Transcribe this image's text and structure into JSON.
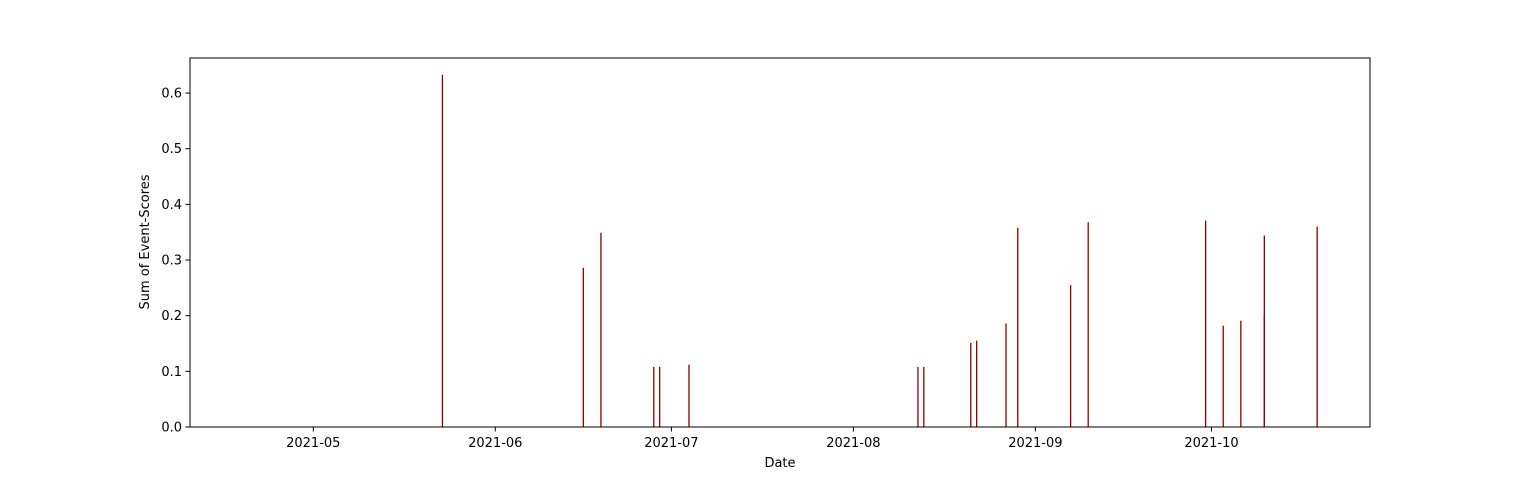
{
  "chart_data": {
    "type": "bar",
    "title": "",
    "xlabel": "Date",
    "ylabel": "Sum of Event-Scores",
    "x_axis_kind": "date",
    "xlim": [
      "2021-04-10",
      "2021-10-28"
    ],
    "ylim": [
      0,
      0.663
    ],
    "xticks": [
      "2021-05-01",
      "2021-06-01",
      "2021-07-01",
      "2021-08-01",
      "2021-09-01",
      "2021-10-01"
    ],
    "xtick_labels": [
      "2021-05",
      "2021-06",
      "2021-07",
      "2021-08",
      "2021-09",
      "2021-10"
    ],
    "yticks": [
      0.0,
      0.1,
      0.2,
      0.3,
      0.4,
      0.5,
      0.6
    ],
    "ytick_labels": [
      "0.0",
      "0.1",
      "0.2",
      "0.3",
      "0.4",
      "0.5",
      "0.6"
    ],
    "grid": false,
    "bar_color": "#8b0000",
    "x": [
      "2021-05-23",
      "2021-06-16",
      "2021-06-19",
      "2021-06-28",
      "2021-06-29",
      "2021-07-04",
      "2021-08-12",
      "2021-08-13",
      "2021-08-21",
      "2021-08-22",
      "2021-08-27",
      "2021-08-29",
      "2021-09-07",
      "2021-09-10",
      "2021-09-30",
      "2021-10-03",
      "2021-10-06",
      "2021-10-10",
      "2021-10-10",
      "2021-10-19"
    ],
    "values": [
      0.633,
      0.286,
      0.349,
      0.108,
      0.108,
      0.112,
      0.108,
      0.108,
      0.151,
      0.155,
      0.186,
      0.358,
      0.255,
      0.368,
      0.371,
      0.182,
      0.191,
      0.201,
      0.344,
      0.36
    ]
  }
}
